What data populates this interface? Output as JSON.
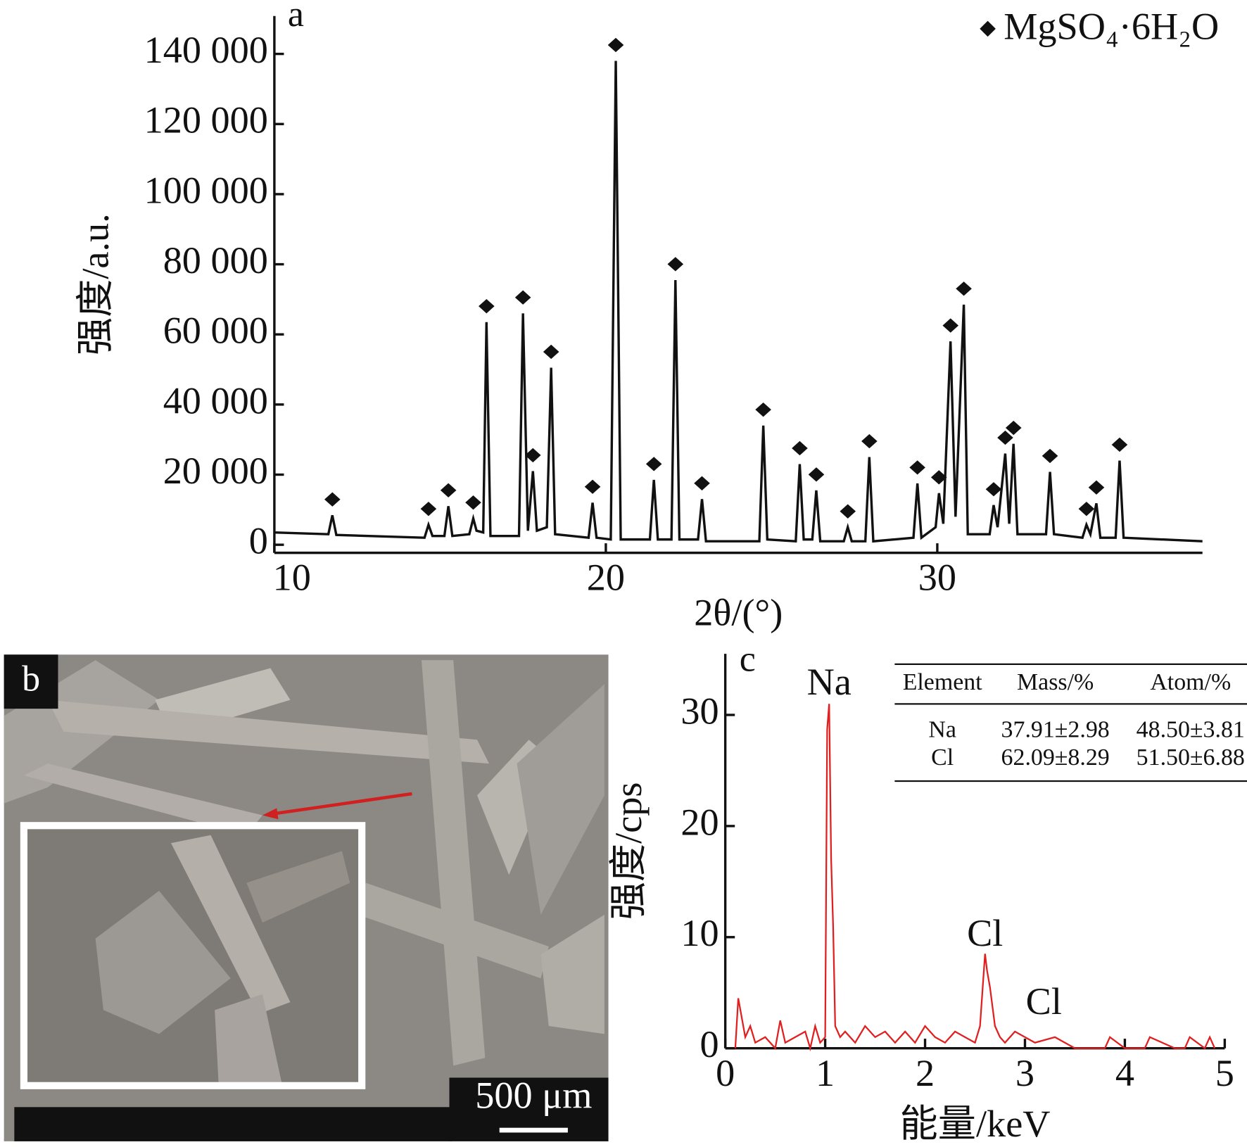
{
  "chart_data": [
    {
      "type": "line",
      "panel": "a",
      "x_label": "2θ/(°)",
      "y_label": "强度/a.u.",
      "xlim": [
        10,
        38
      ],
      "xticks": [
        10,
        20,
        30
      ],
      "ylim": [
        -2300,
        150800
      ],
      "yticks": [
        0,
        {
          "value": 20000,
          "label": "20 000"
        },
        {
          "value": 40000,
          "label": "40 000"
        },
        {
          "value": 60000,
          "label": "60 000"
        },
        {
          "value": 80000,
          "label": "80 000"
        },
        {
          "value": 100000,
          "label": "100 000"
        },
        {
          "value": 120000,
          "label": "120 000"
        },
        {
          "value": 140000,
          "label": "140 000"
        }
      ],
      "legend": "top-right",
      "marker": "diamond",
      "x": [
        10,
        11.63,
        11.75,
        11.87,
        14.53,
        14.65,
        14.77,
        15.13,
        15.25,
        15.37,
        15.88,
        16.0,
        16.1,
        16.3,
        16.4,
        16.52,
        17.38,
        17.5,
        17.65,
        17.8,
        17.92,
        18.22,
        18.35,
        18.47,
        19.48,
        19.6,
        19.72,
        20.15,
        20.3,
        20.45,
        21.33,
        21.45,
        21.57,
        21.98,
        22.1,
        22.22,
        22.78,
        22.9,
        23.02,
        24.63,
        24.75,
        24.87,
        25.73,
        25.85,
        25.97,
        26.23,
        26.35,
        26.47,
        27.18,
        27.3,
        27.42,
        27.83,
        27.95,
        28.07,
        29.28,
        29.4,
        29.52,
        29.95,
        30.05,
        30.18,
        30.4,
        30.55,
        30.8,
        30.92,
        31.58,
        31.7,
        31.82,
        32.05,
        32.17,
        32.3,
        32.42,
        33.28,
        33.4,
        33.52,
        34.38,
        34.5,
        34.62,
        34.8,
        34.92,
        35.38,
        35.5,
        35.62,
        38
      ],
      "series": [
        {
          "name": "MgSO₄·6H₂O",
          "color": "#111111",
          "values": [
            3500,
            3000,
            8400,
            2800,
            2000,
            5700,
            2500,
            2500,
            11000,
            2500,
            3000,
            7500,
            4000,
            3500,
            63500,
            2500,
            2500,
            66000,
            4000,
            21000,
            4000,
            5000,
            50500,
            3000,
            2000,
            12000,
            2000,
            1500,
            138000,
            1500,
            1500,
            18500,
            1500,
            1500,
            75500,
            1500,
            1500,
            13000,
            1000,
            1000,
            34000,
            1500,
            1000,
            23000,
            1500,
            1500,
            15500,
            1000,
            1000,
            5000,
            1000,
            1000,
            25000,
            1000,
            2000,
            17500,
            2000,
            5000,
            14700,
            6000,
            58000,
            8000,
            68500,
            3000,
            3000,
            11300,
            5000,
            26000,
            6000,
            28800,
            3000,
            3000,
            20800,
            3000,
            2000,
            5700,
            3000,
            11800,
            2000,
            2000,
            24000,
            2000,
            1000
          ]
        }
      ]
    },
    {
      "type": "line",
      "panel": "c",
      "x_label": "能量/keV",
      "y_label": "强度/cps",
      "xlim": [
        0,
        5
      ],
      "xticks": [
        0,
        1,
        2,
        3,
        4,
        5
      ],
      "ylim": [
        0,
        35.5
      ],
      "yticks": [
        0,
        10,
        20,
        30
      ],
      "x": [
        0.1,
        0.13,
        0.16,
        0.2,
        0.25,
        0.3,
        0.4,
        0.5,
        0.55,
        0.6,
        0.7,
        0.8,
        0.85,
        0.9,
        0.95,
        1.0,
        1.02,
        1.04,
        1.06,
        1.08,
        1.1,
        1.15,
        1.2,
        1.3,
        1.4,
        1.5,
        1.6,
        1.7,
        1.8,
        1.9,
        2.0,
        2.1,
        2.2,
        2.3,
        2.4,
        2.5,
        2.55,
        2.6,
        2.62,
        2.65,
        2.7,
        2.75,
        2.8,
        2.9,
        3.0,
        3.1,
        3.3,
        3.5,
        3.8,
        3.85,
        4.0,
        4.2,
        4.25,
        4.5,
        4.6,
        4.65,
        4.8,
        4.85,
        4.9
      ],
      "series": [
        {
          "color": "#e02020",
          "values": [
            0,
            4.5,
            3,
            1,
            2,
            0.5,
            1,
            0,
            2.5,
            0.5,
            1,
            1.5,
            0,
            2,
            0.5,
            1,
            28.7,
            31,
            17,
            11,
            2,
            1,
            1.5,
            0.5,
            2,
            1,
            1.5,
            0.5,
            1.5,
            0.5,
            2,
            1,
            0.5,
            1.5,
            1,
            0.5,
            2,
            8.5,
            7,
            5.5,
            2,
            1,
            0.5,
            1.5,
            1,
            0.5,
            1,
            0,
            0,
            1,
            0,
            0,
            1,
            0,
            0,
            1,
            0,
            1,
            0
          ]
        }
      ],
      "annotations": [
        {
          "text": "Na",
          "x": 1.04
        },
        {
          "text": "Cl",
          "x": 2.6
        },
        {
          "text": "Cl",
          "x": 2.95
        }
      ],
      "table": {
        "header": [
          "Element",
          "Mass/%",
          "Atom/%"
        ],
        "rows": [
          [
            "Na",
            "37.91±2.98",
            "48.50±3.81"
          ],
          [
            "Cl",
            "62.09±8.29",
            "51.50±6.88"
          ]
        ]
      }
    }
  ],
  "panel_b": {
    "label": "b",
    "scale_bar": "500 μm"
  }
}
